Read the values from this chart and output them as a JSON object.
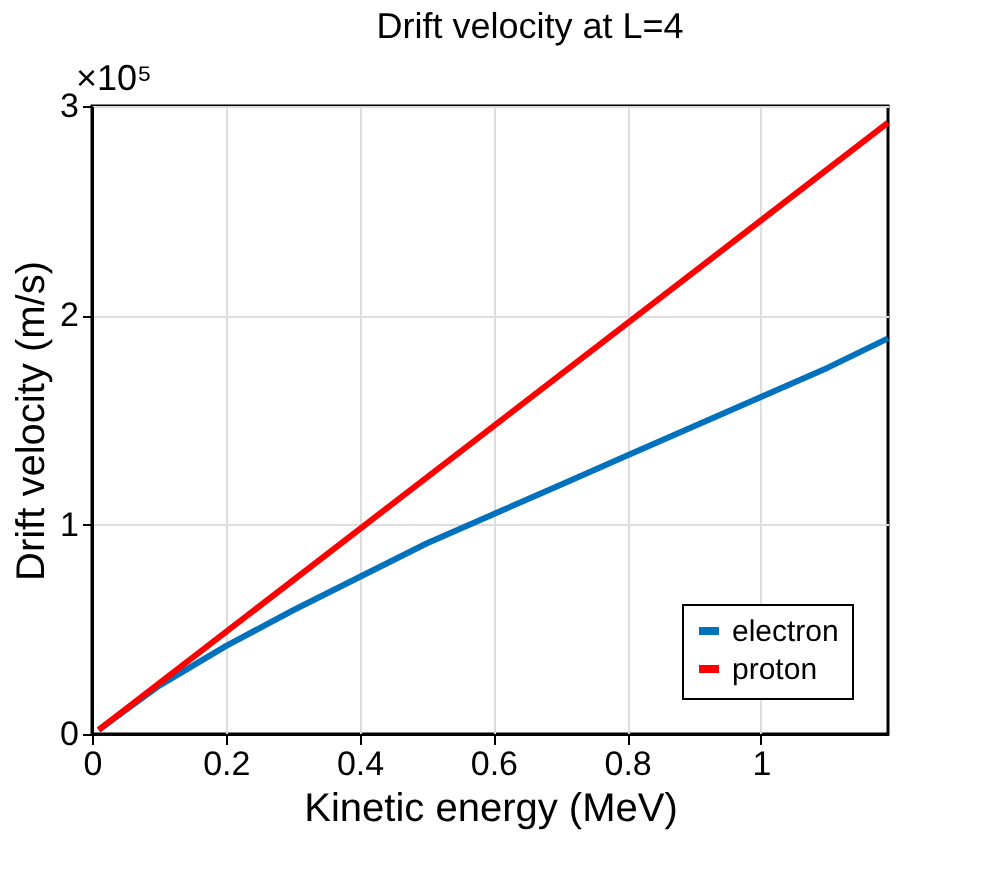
{
  "chart_data": {
    "type": "line",
    "title": "Drift velocity at L=4",
    "xlabel": "Kinetic energy (MeV)",
    "ylabel": "Drift velocity (m/s)",
    "annotations": [
      "×10⁵"
    ],
    "xlim": [
      0,
      1.19
    ],
    "xticks": [
      0,
      0.2,
      0.4,
      0.6,
      0.8,
      1
    ],
    "ylim": [
      0,
      3
    ],
    "yticks": [
      0,
      1,
      2,
      3
    ],
    "grid": true,
    "legend": "bottom right",
    "line_style": "solid",
    "marker": "none",
    "series": [
      {
        "name": "electron",
        "color": "#0072bd",
        "x": [
          0.01,
          0.1,
          0.2,
          0.3,
          0.4,
          0.5,
          0.6,
          0.7,
          0.8,
          0.9,
          1.0,
          1.1,
          1.19
        ],
        "values": [
          0.02,
          0.23,
          0.42,
          0.59,
          0.75,
          0.91,
          1.05,
          1.19,
          1.33,
          1.47,
          1.61,
          1.75,
          1.89
        ]
      },
      {
        "name": "proton",
        "color": "#ff0000",
        "x": [
          0.01,
          1.19
        ],
        "values": [
          0.02,
          2.92
        ]
      }
    ]
  }
}
